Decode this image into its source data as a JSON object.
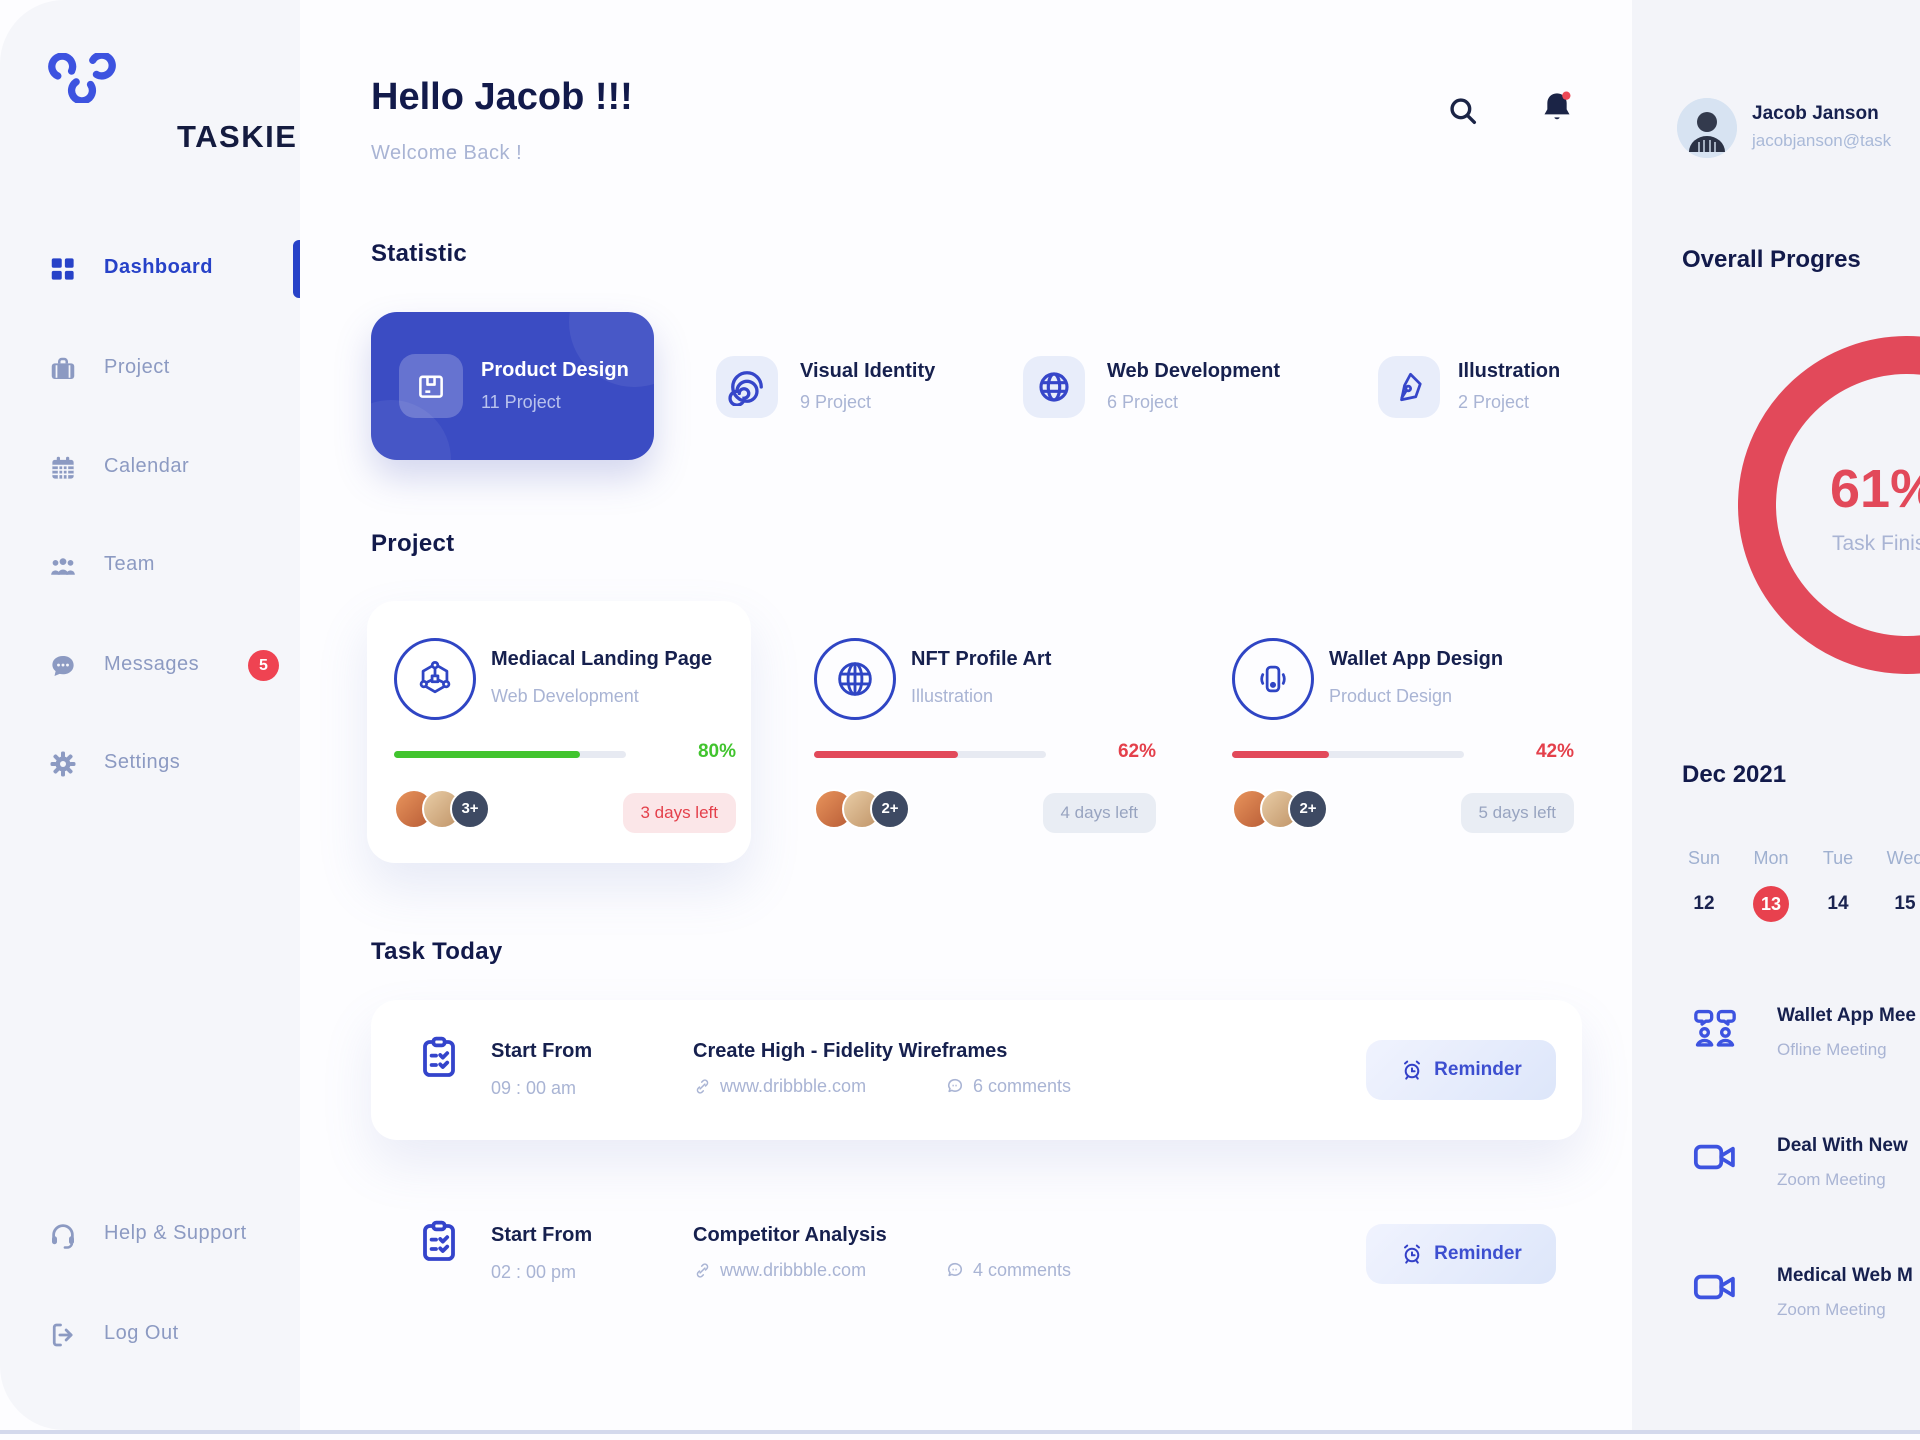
{
  "brand": {
    "name": "TASKIE"
  },
  "sidebar": {
    "items": [
      {
        "label": "Dashboard",
        "icon": "dashboard-icon",
        "active": true
      },
      {
        "label": "Project",
        "icon": "briefcase-icon"
      },
      {
        "label": "Calendar",
        "icon": "calendar-icon"
      },
      {
        "label": "Team",
        "icon": "team-icon"
      },
      {
        "label": "Messages",
        "icon": "messages-icon",
        "badge": "5"
      },
      {
        "label": "Settings",
        "icon": "gear-icon"
      }
    ],
    "footer_items": [
      {
        "label": "Help & Support",
        "icon": "headset-icon"
      },
      {
        "label": "Log Out",
        "icon": "logout-icon"
      }
    ]
  },
  "header": {
    "greeting": "Hello Jacob !!!",
    "subtitle": "Welcome Back !"
  },
  "statistic": {
    "title": "Statistic",
    "cards": [
      {
        "title": "Product Design",
        "count": "11 Project",
        "icon": "package-box-icon",
        "highlighted": true
      },
      {
        "title": "Visual Identity",
        "count": "9 Project",
        "icon": "swirl-icon"
      },
      {
        "title": "Web Development",
        "count": "6 Project",
        "icon": "globe-icon"
      },
      {
        "title": "Illustration",
        "count": "2 Project",
        "icon": "pen-nib-icon"
      }
    ]
  },
  "projects": {
    "title": "Project",
    "cards": [
      {
        "title": "Mediacal Landing Page",
        "category": "Web Development",
        "icon": "hexagon-molecule-icon",
        "progress": 80,
        "progress_label": "80%",
        "extra_members": "3+",
        "days_left": "3 days left",
        "urgent": true
      },
      {
        "title": "NFT Profile Art",
        "category": "Illustration",
        "icon": "globe-grid-icon",
        "progress": 62,
        "progress_label": "62%",
        "extra_members": "2+",
        "days_left": "4 days left",
        "urgent": false
      },
      {
        "title": "Wallet App Design",
        "category": "Product Design",
        "icon": "phone-wave-icon",
        "progress": 42,
        "progress_label": "42%",
        "extra_members": "2+",
        "days_left": "5 days left",
        "urgent": false
      }
    ]
  },
  "tasks": {
    "title": "Task Today",
    "items": [
      {
        "start_label": "Start From",
        "time": "09 : 00 am",
        "task_title": "Create High - Fidelity Wireframes",
        "link": "www.dribbble.com",
        "comments": "6 comments",
        "reminder": "Reminder"
      },
      {
        "start_label": "Start From",
        "time": "02 : 00 pm",
        "task_title": "Competitor Analysis",
        "link": "www.dribbble.com",
        "comments": "4 comments",
        "reminder": "Reminder"
      }
    ]
  },
  "profile": {
    "name": "Jacob Janson",
    "email": "jacobjanson@task"
  },
  "overall": {
    "title": "Overall Progres",
    "percent_value": 61,
    "percent_label": "61%",
    "caption": "Task Finis"
  },
  "calendar": {
    "month": "Dec 2021",
    "day_names": [
      "Sun",
      "Mon",
      "Tue",
      "Wed"
    ],
    "dates": [
      {
        "num": "12",
        "active": false
      },
      {
        "num": "13",
        "active": true
      },
      {
        "num": "14",
        "active": false
      },
      {
        "num": "15",
        "active": false
      }
    ]
  },
  "meetings": [
    {
      "title": "Wallet App Mee",
      "subtitle": "Ofline Meeting",
      "icon": "people-chat-icon"
    },
    {
      "title": "Deal With New",
      "subtitle": "Zoom Meeting",
      "icon": "video-camera-icon"
    },
    {
      "title": "Medical Web M",
      "subtitle": "Zoom Meeting",
      "icon": "video-camera-icon"
    }
  ],
  "colors": {
    "primary_blue": "#3b4cc3",
    "logo_blue": "#3d53e0",
    "dark_navy": "#151c49",
    "muted_text": "#a9b4d4",
    "sidebar_text": "#8c9ac2",
    "red_accent": "#e2495a",
    "badge_red": "#ef4352",
    "green_progress": "#41c42e",
    "icon_bg": "#e8edfa",
    "panel_bg": "#f3f4f9",
    "sidebar_bg": "#f5f6fa",
    "day_highlight": "#e8414e"
  }
}
